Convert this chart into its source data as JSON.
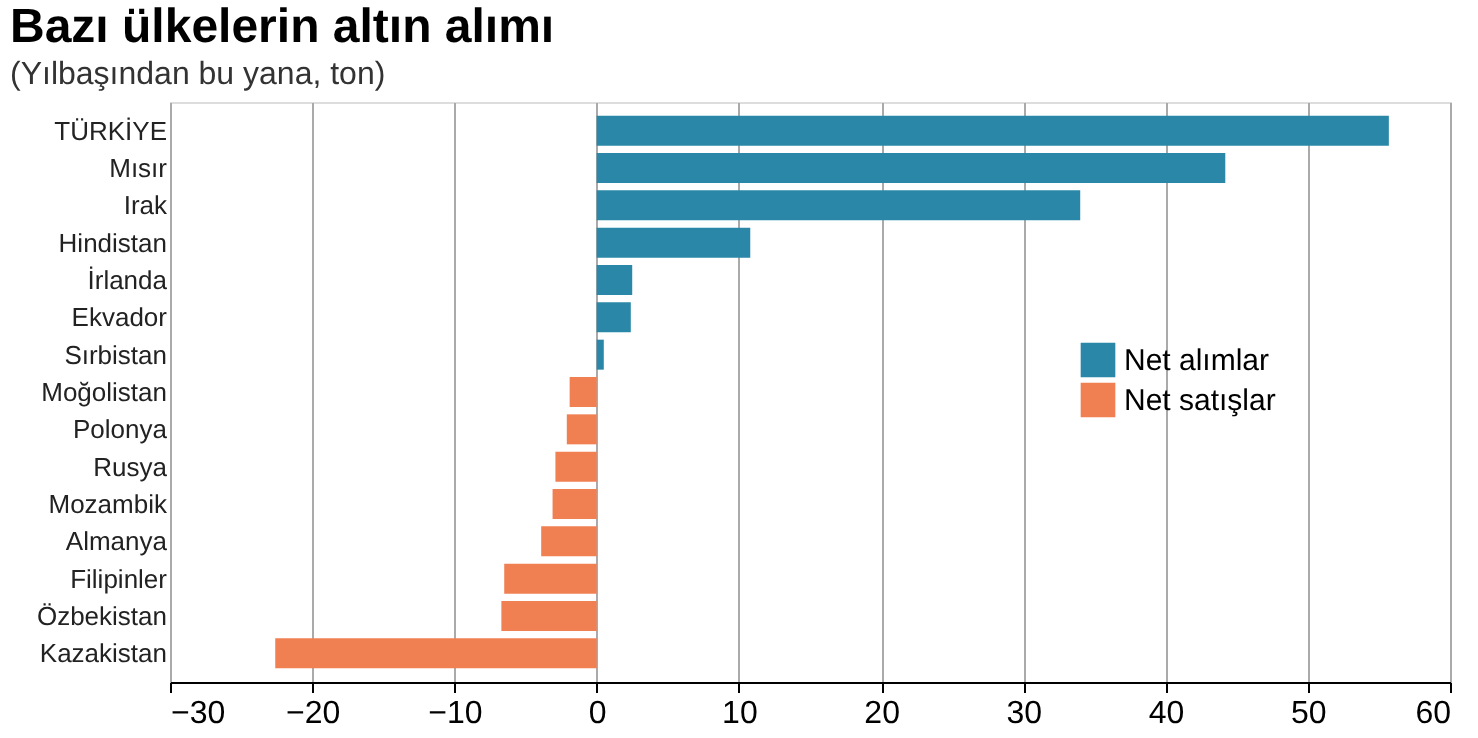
{
  "chart_data": {
    "type": "bar",
    "orientation": "horizontal",
    "title": "Bazı ülkelerin altın alımı",
    "subtitle": "(Yılbaşından bu yana, ton)",
    "categories": [
      "TÜRKİYE",
      "Mısır",
      "Irak",
      "Hindistan",
      "İrlanda",
      "Ekvador",
      "Sırbistan",
      "Moğolistan",
      "Polonya",
      "Rusya",
      "Mozambik",
      "Almanya",
      "Filipinler",
      "Özbekistan",
      "Kazakistan"
    ],
    "series": [
      {
        "name": "Net alımlar",
        "color": "#2a87a8",
        "values": [
          55.7,
          44.2,
          34.0,
          10.8,
          2.5,
          2.4,
          0.5,
          null,
          null,
          null,
          null,
          null,
          null,
          null,
          null
        ]
      },
      {
        "name": "Net satışlar",
        "color": "#f07f52",
        "values": [
          null,
          null,
          null,
          null,
          null,
          null,
          null,
          -1.9,
          -2.1,
          -2.9,
          -3.1,
          -3.9,
          -6.5,
          -6.7,
          -22.6
        ]
      }
    ],
    "xlim": [
      -30,
      60
    ],
    "xticks": [
      -30,
      -20,
      -10,
      0,
      10,
      20,
      30,
      40,
      50,
      60
    ],
    "grid": "x",
    "legend": "right"
  }
}
